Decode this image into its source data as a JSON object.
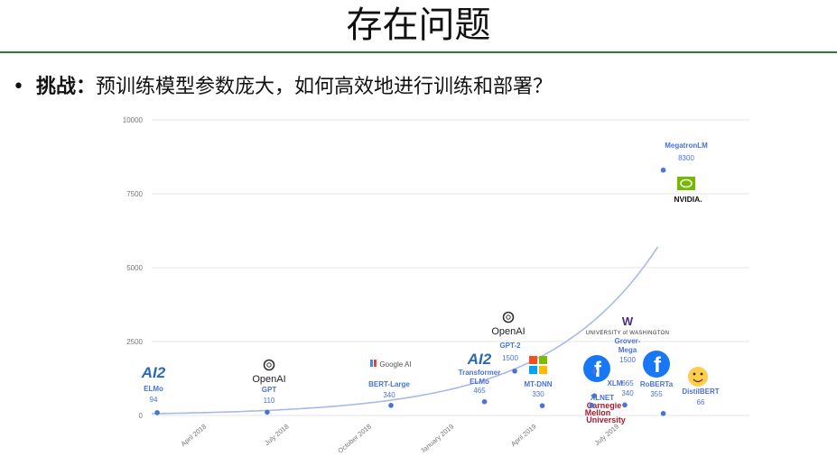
{
  "slide": {
    "title": "存在问题",
    "bullet_mark": "•",
    "bullet_label": "挑战：",
    "bullet_text": "预训练模型参数庞大，如何高效地进行训练和部署？"
  },
  "colors": {
    "rule": "#2e7d32",
    "point": "#4a72d8",
    "curve": "#a9b9e6",
    "label": "#4a72d8",
    "grid": "#e4e4e4",
    "axis_text": "#777777",
    "facebook": "#1877f2",
    "nvidia": "#76b900",
    "ms_red": "#f25022",
    "ms_green": "#7fba00",
    "ms_blue": "#00a4ef",
    "ms_yellow": "#ffb900",
    "cmu": "#a6192e",
    "uw": "#4b2e83",
    "hf": "#ffcc4d"
  },
  "chart_data": {
    "type": "scatter",
    "title": "",
    "xlabel": "",
    "ylabel": "",
    "ylim": [
      0,
      10000
    ],
    "yticks": [
      "0",
      "2500",
      "5000",
      "7500",
      "10000"
    ],
    "ytick_values": [
      0,
      2500,
      5000,
      7500,
      10000
    ],
    "xticks": [
      "April 2018",
      "July 2018",
      "October 2018",
      "January 2019",
      "April 2019",
      "July 2019"
    ],
    "xtick_months": [
      0,
      3,
      6,
      9,
      12,
      15
    ],
    "xlim_months": [
      -2.0,
      17.5
    ],
    "trend": "exponential fit",
    "points": [
      {
        "model": "ELMo",
        "params": 94,
        "value_label": "94",
        "month": -1.8,
        "org": "AI2"
      },
      {
        "model": "GPT",
        "params": 110,
        "value_label": "110",
        "month": 2.2,
        "org": "OpenAI"
      },
      {
        "model": "BERT-Large",
        "params": 340,
        "value_label": "340",
        "month": 6.7,
        "org": "Google AI"
      },
      {
        "model": "Transformer ELMo",
        "params": 465,
        "value_label": "465",
        "month": 10.1,
        "org": "AI2"
      },
      {
        "model": "GPT-2",
        "params": 1500,
        "value_label": "1500",
        "month": 11.2,
        "org": "OpenAI"
      },
      {
        "model": "MT-DNN",
        "params": 330,
        "value_label": "330",
        "month": 12.2,
        "org": "Microsoft"
      },
      {
        "model": "XLNET",
        "params": 340,
        "value_label": "340",
        "month": 14.0,
        "org": "Carnegie Mellon University"
      },
      {
        "model": "Grover-Mega",
        "params": 1500,
        "value_label": "1500",
        "month": 14.1,
        "org": "University of Washington"
      },
      {
        "model": "XLM",
        "params": 665,
        "value_label": "665",
        "month": 14.1,
        "org": "Facebook"
      },
      {
        "model": "RoBERTa",
        "params": 355,
        "value_label": "355",
        "month": 15.2,
        "org": "Facebook"
      },
      {
        "model": "MegatronLM",
        "params": 8300,
        "value_label": "8300",
        "month": 16.6,
        "org": "NVIDIA"
      },
      {
        "model": "DistilBERT",
        "params": 66,
        "value_label": "66",
        "month": 16.6,
        "org": "Hugging Face"
      }
    ],
    "logos": {
      "ai2": "AI2",
      "openai": "OpenAI",
      "google": "Google AI",
      "nvidia": "NVIDIA.",
      "cmu_line1": "Carnegie",
      "cmu_line2": "Mellon",
      "cmu_line3": "University",
      "uw_mark": "W",
      "uw_text": "UNIVERSITY of WASHINGTON"
    }
  }
}
